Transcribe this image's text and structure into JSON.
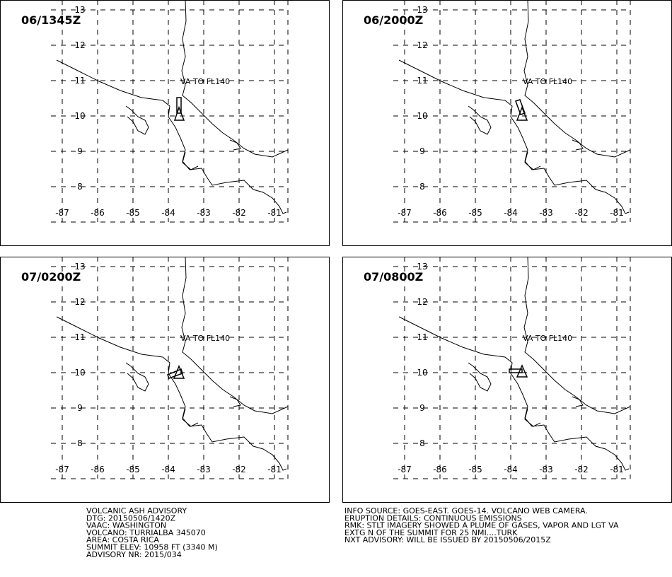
{
  "panels": [
    {
      "time": "06/1345Z",
      "annotation": "VA TO FL140"
    },
    {
      "time": "06/2000Z",
      "annotation": "VA TO FL140"
    },
    {
      "time": "07/0200Z",
      "annotation": "VA TO FL140"
    },
    {
      "time": "07/0800Z",
      "annotation": "VA TO FL140"
    }
  ],
  "lat_labels": [
    "13",
    "12",
    "11",
    "10",
    "9",
    "8"
  ],
  "lon_labels": [
    "-87",
    "-86",
    "-85",
    "-84",
    "-83",
    "-82",
    "-81"
  ],
  "advisory_left": [
    "VOLCANIC ASH ADVISORY",
    "DTG: 20150506/1420Z",
    "VAAC: WASHINGTON",
    "VOLCANO: TURRIALBA 345070",
    "AREA: COSTA RICA",
    "SUMMIT ELEV: 10958 FT (3340 M)",
    "ADVISORY NR: 2015/034"
  ],
  "advisory_right": [
    "INFO SOURCE: GOES-EAST. GOES-14. VOLCANO WEB CAMERA.",
    "ERUPTION DETAILS: CONTINUOUS EMISSIONS",
    "RMK: STLT IMAGERY SHOWED A PLUME OF GASES, VAPOR AND LGT VA",
    "EXTG N OF THE SUMMIT FOR 25 NMI....TURK",
    "NXT ADVISORY: WILL BE ISSUED BY 20150506/2015Z"
  ]
}
